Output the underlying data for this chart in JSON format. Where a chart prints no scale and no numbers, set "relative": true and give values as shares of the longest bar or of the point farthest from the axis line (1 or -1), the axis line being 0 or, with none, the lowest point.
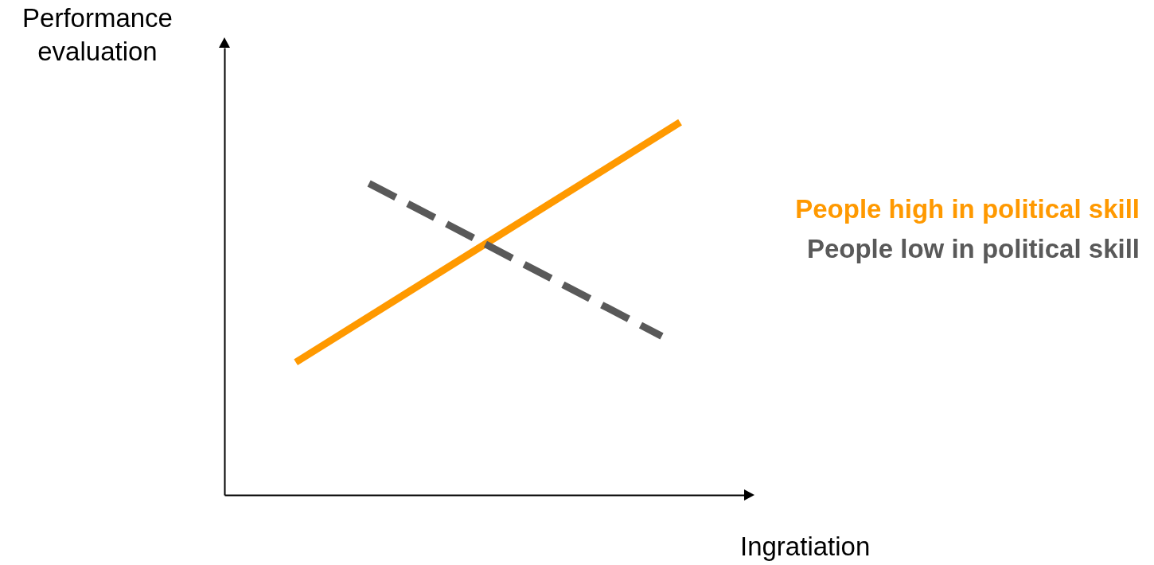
{
  "chart_data": {
    "type": "line",
    "relative": true,
    "xlabel": "Ingratiation",
    "ylabel": "Performance evaluation",
    "legend": "right",
    "grid": false,
    "marker": "none",
    "categories": [
      null,
      null,
      null,
      null,
      null,
      null,
      null,
      null,
      null,
      null,
      null,
      null,
      null,
      null,
      null,
      null,
      null,
      null,
      null,
      null,
      null,
      null
    ],
    "series": [
      {
        "name": "People high in political skill",
        "color": "#ff9900",
        "line_style": "solid",
        "values": [
          0.356,
          null,
          null,
          null,
          null,
          null,
          null,
          null,
          null,
          null,
          null,
          null,
          null,
          null,
          null,
          null,
          null,
          null,
          null,
          null,
          null,
          1
        ]
      },
      {
        "name": "People low in political skill",
        "color": "#595959",
        "line_style": "dashed",
        "values": [
          null,
          null,
          null,
          null,
          0.836,
          null,
          null,
          null,
          null,
          null,
          null,
          null,
          null,
          null,
          null,
          null,
          null,
          null,
          null,
          null,
          0.426,
          null
        ]
      }
    ]
  }
}
